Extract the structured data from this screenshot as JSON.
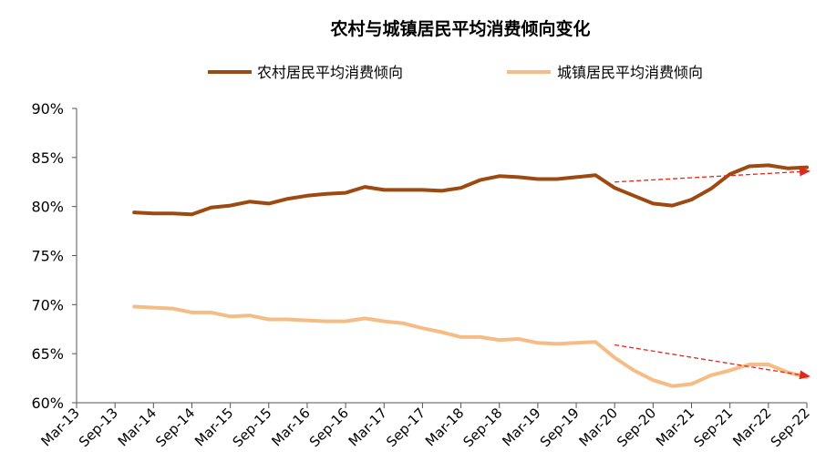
{
  "chart_data": {
    "type": "line",
    "title": "农村与城镇居民平均消费倾向变化",
    "xlabel": "",
    "ylabel": "",
    "ylim": [
      60,
      90
    ],
    "yticks": [
      "60%",
      "65%",
      "70%",
      "75%",
      "80%",
      "85%",
      "90%"
    ],
    "ytick_values": [
      60,
      65,
      70,
      75,
      80,
      85,
      90
    ],
    "xtick_labels": [
      "Mar-13",
      "Sep-13",
      "Mar-14",
      "Sep-14",
      "Mar-15",
      "Sep-15",
      "Mar-16",
      "Sep-16",
      "Mar-17",
      "Sep-17",
      "Mar-18",
      "Sep-18",
      "Mar-19",
      "Sep-19",
      "Mar-20",
      "Sep-20",
      "Mar-21",
      "Sep-21",
      "Mar-22",
      "Sep-22"
    ],
    "x_start_index": 1.5,
    "x_step": 0.5,
    "legend_position": "top",
    "series": [
      {
        "name": "农村居民平均消费倾向",
        "color": "#9c4a10",
        "values": [
          79.4,
          79.3,
          79.3,
          79.2,
          79.9,
          80.1,
          80.5,
          80.3,
          80.8,
          81.1,
          81.3,
          81.4,
          82.0,
          81.7,
          81.7,
          81.7,
          81.6,
          81.9,
          82.7,
          83.1,
          83.0,
          82.8,
          82.8,
          83.0,
          83.2,
          81.9,
          81.1,
          80.3,
          80.1,
          80.7,
          81.8,
          83.3,
          84.1,
          84.2,
          83.9,
          84.0
        ]
      },
      {
        "name": "城镇居民平均消费倾向",
        "color": "#f5bd85",
        "values": [
          69.8,
          69.7,
          69.6,
          69.2,
          69.2,
          68.8,
          68.9,
          68.5,
          68.5,
          68.4,
          68.3,
          68.3,
          68.6,
          68.3,
          68.1,
          67.6,
          67.2,
          66.7,
          66.7,
          66.4,
          66.5,
          66.1,
          66.0,
          66.1,
          66.2,
          64.6,
          63.3,
          62.3,
          61.7,
          61.9,
          62.8,
          63.3,
          63.9,
          63.9,
          63.1,
          62.6
        ]
      }
    ],
    "annotations": [
      {
        "type": "dashed-arrow",
        "color": "#e0281e",
        "from": [
          14,
          82.5
        ],
        "to": [
          19.05,
          83.6
        ],
        "description": "upward trend arrow for rural series"
      },
      {
        "type": "dashed-arrow",
        "color": "#e0281e",
        "from": [
          14,
          65.9
        ],
        "to": [
          19.05,
          62.7
        ],
        "description": "downward trend arrow for urban series"
      }
    ]
  }
}
